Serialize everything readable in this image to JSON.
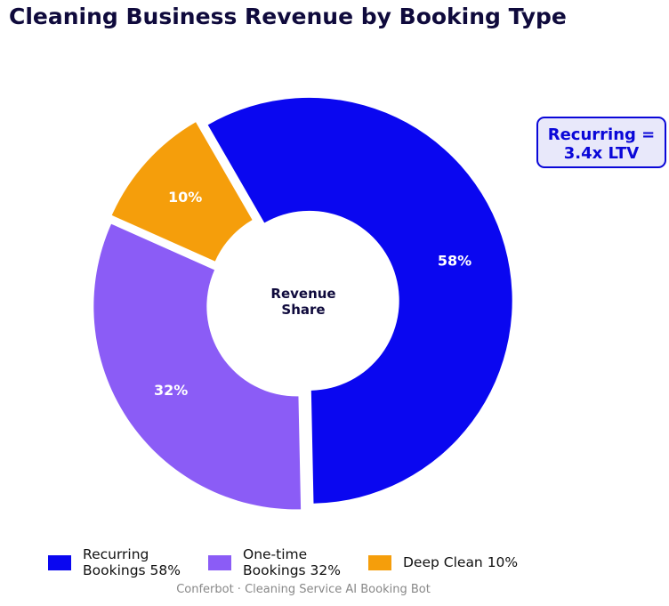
{
  "title": "Cleaning Business Revenue by Booking Type",
  "center_label": [
    "Revenue",
    "Share"
  ],
  "callout": {
    "line1": "Recurring =",
    "line2": "3.4x LTV",
    "color": "#0a07d8",
    "background": "#e8e8fa"
  },
  "legend": [
    {
      "label": "Recurring\nBookings  58%",
      "color": "#0a07f0"
    },
    {
      "label": "One-time\nBookings  32%",
      "color": "#8b5cf6"
    },
    {
      "label": "Deep Clean  10%",
      "color": "#f59e0b"
    }
  ],
  "footer": "Conferbot · Cleaning Service AI Booking Bot",
  "chart_data": {
    "type": "pie",
    "subtype": "donut",
    "title": "Cleaning Business Revenue by Booking Type",
    "center_text": "Revenue Share",
    "categories": [
      "Recurring Bookings",
      "One-time Bookings",
      "Deep Clean"
    ],
    "values": [
      58,
      32,
      10
    ],
    "value_labels": [
      "58%",
      "32%",
      "10%"
    ],
    "colors": [
      "#0a07f0",
      "#8b5cf6",
      "#f59e0b"
    ],
    "start_angle": 120,
    "direction": "clockwise",
    "exploded": true,
    "legend_position": "bottom",
    "annotation": "Recurring = 3.4x LTV"
  }
}
